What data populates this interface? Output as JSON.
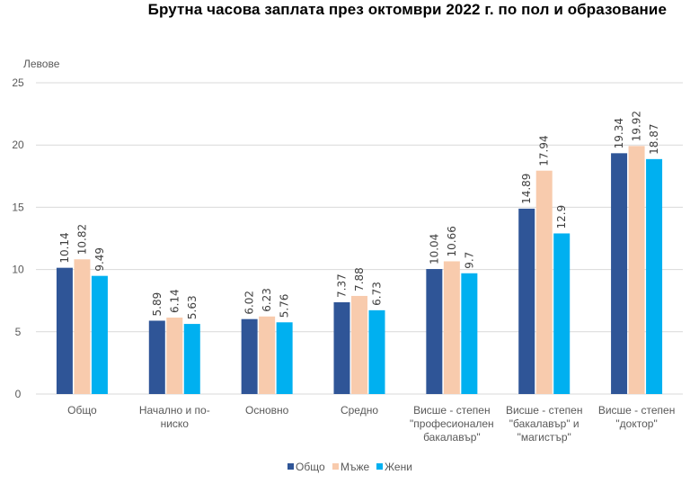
{
  "chart_data": {
    "type": "bar",
    "title": "Брутна часова заплата през октомври 2022 г. по пол и образование",
    "ylabel": "Левове",
    "xlabel": "",
    "ylim": [
      0,
      25
    ],
    "yticks": [
      "0",
      "5",
      "10",
      "15",
      "20",
      "25"
    ],
    "grid": true,
    "legend_position": "bottom",
    "categories": [
      [
        "Общо"
      ],
      [
        "Начално и по-",
        "ниско"
      ],
      [
        "Основно"
      ],
      [
        "Средно"
      ],
      [
        "Висше - степен",
        "\"професионален",
        "бакалавър\""
      ],
      [
        "Висше - степен",
        "\"бакалавър\" и",
        "\"магистър\""
      ],
      [
        "Висше - степен",
        "\"доктор\""
      ]
    ],
    "series": [
      {
        "name": "Общо",
        "color": "#2F5597",
        "values": [
          10.14,
          5.89,
          6.02,
          7.37,
          10.04,
          14.89,
          19.34
        ],
        "labels": [
          "10.14",
          "5.89",
          "6.02",
          "7.37",
          "10.04",
          "14.89",
          "19.34"
        ]
      },
      {
        "name": "Мъже",
        "color": "#F8CBAD",
        "values": [
          10.82,
          6.14,
          6.23,
          7.88,
          10.66,
          17.94,
          19.92
        ],
        "labels": [
          "10.82",
          "6.14",
          "6.23",
          "7.88",
          "10.66",
          "17.94",
          "19.92"
        ]
      },
      {
        "name": "Жени",
        "color": "#00B0F0",
        "values": [
          9.49,
          5.63,
          5.76,
          6.73,
          9.7,
          12.9,
          18.87
        ],
        "labels": [
          "9.49",
          "5.63",
          "5.76",
          "6.73",
          "9.7",
          "12.9",
          "18.87"
        ]
      }
    ],
    "gridline_color": "#D9D9D9"
  }
}
